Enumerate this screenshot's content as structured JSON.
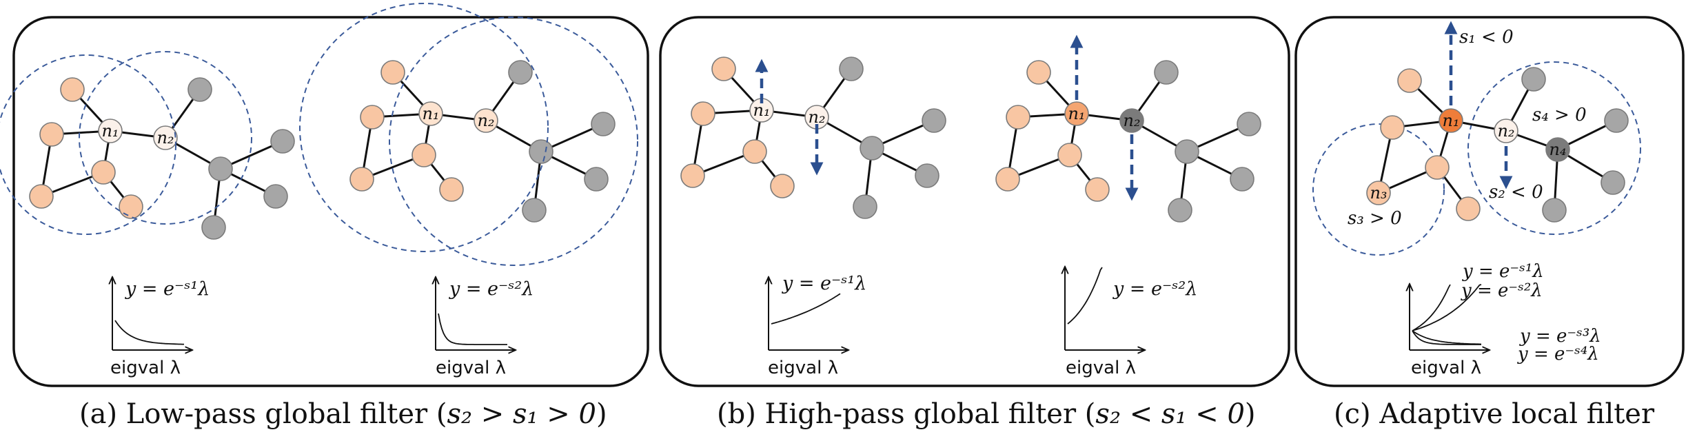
{
  "colors": {
    "orange_light": "#f8c6a3",
    "orange_mid": "#f4a571",
    "orange_strong": "#ee7d3a",
    "node_white": "#fbf1ea",
    "node_pale": "#fde3cf",
    "gray": "#a6a6a6",
    "gray_dark": "#7b7b7b",
    "dashed_blue": "#2b4f8f",
    "panel_border": "#111111"
  },
  "panels": [
    {
      "id": "a",
      "caption": {
        "prefix": "(a) Low-pass global filter (",
        "math": "s₂ > s₁ > 0",
        "suffix": ")"
      },
      "left_graph": {
        "node_labels": [
          "n₁",
          "n₂"
        ],
        "filter": "y = e⁻ˢ¹λ"
      },
      "right_graph": {
        "node_labels": [
          "n₁",
          "n₂"
        ],
        "filter": "y = e⁻ˢ²λ"
      },
      "xlabel": "eigval λ"
    },
    {
      "id": "b",
      "caption": {
        "prefix": "(b) High-pass global filter (",
        "math": "s₂ < s₁ < 0",
        "suffix": ")"
      },
      "left_graph": {
        "node_labels": [
          "n₁",
          "n₂"
        ],
        "filter": "y = e⁻ˢ¹λ"
      },
      "right_graph": {
        "node_labels": [
          "n₁",
          "n₂"
        ],
        "filter": "y = e⁻ˢ²λ"
      },
      "xlabel": "eigval λ"
    },
    {
      "id": "c",
      "caption": {
        "prefix": "(c) Adaptive local filter",
        "math": "",
        "suffix": ""
      },
      "node_labels": [
        "n₁",
        "n₂",
        "n₃",
        "n₄"
      ],
      "sign_labels": [
        "s₁ < 0",
        "s₄ > 0",
        "s₂ < 0",
        "s₃ > 0"
      ],
      "filters": [
        "y = e⁻ˢ¹λ",
        "y = e⁻ˢ²λ",
        "y = e⁻ˢ³λ",
        "y = e⁻ˢ⁴λ"
      ],
      "xlabel": "eigval λ"
    }
  ]
}
